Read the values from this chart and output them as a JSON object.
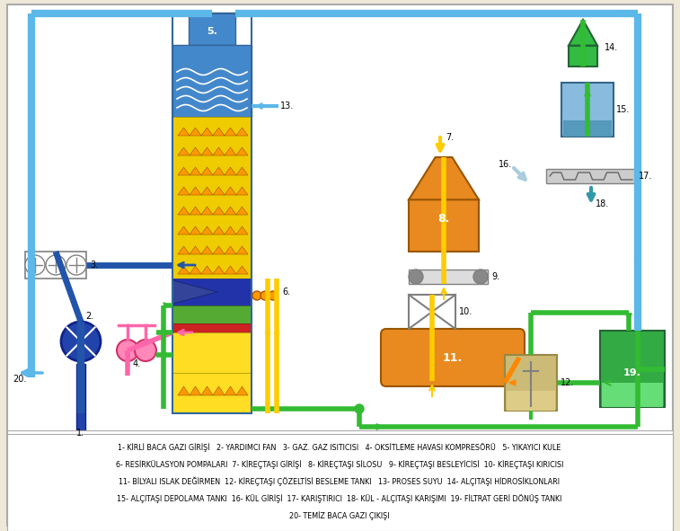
{
  "bg_color": "#EDE8D8",
  "legend_lines": [
    "1- KİRLİ BACA GAZI GİRİŞİ   2- YARDIMCI FAN   3- GAZ. GAZ ISITICISI   4- OKSİTLEME HAVASI KOMPRESÖRÜ   5- YIKAYICI KULE",
    "6- RESİRKÜLASYON POMPALARI  7- KİREÇTAŞI GİRİŞİ   8- KİREÇTAŞI SİLOSU   9- KİREÇTAŞI BESLEYİCİSİ  10- KİREÇTAŞI KIRICISI",
    "11- BİLYALI ISLAK DEĞİRMEN  12- KİREÇTAŞI ÇÖZELTİSİ BESLEME TANKI   13- PROSES SUYU  14- ALÇITAŞI HİDROSİKLONLARI",
    "15- ALÇITAŞI DEPOLAMA TANKI  16- KÜL GİRİŞİ  17- KARIŞTIRICI  18- KÜL - ALÇITAŞI KARIŞIMI  19- FİLTRAT GERİ DÖNÜŞ TANKI",
    "20- TEMİZ BACA GAZI ÇIKIŞI"
  ],
  "colors": {
    "blue_light": "#5BB8E8",
    "blue_dark": "#2255AA",
    "green_pipe": "#33BB33",
    "yellow_pipe": "#FFCC00",
    "orange_pipe": "#FF8800",
    "pink_pipe": "#FF66AA",
    "tower_blue": "#4488CC",
    "tower_blue2": "#5599DD",
    "tower_dark": "#334499",
    "tower_green": "#55AA33",
    "tower_red": "#CC2222",
    "tower_yellow": "#FFDD00",
    "silo_orange": "#E88A20",
    "tank_green": "#33AA33",
    "bg": "#EDE8D8"
  }
}
